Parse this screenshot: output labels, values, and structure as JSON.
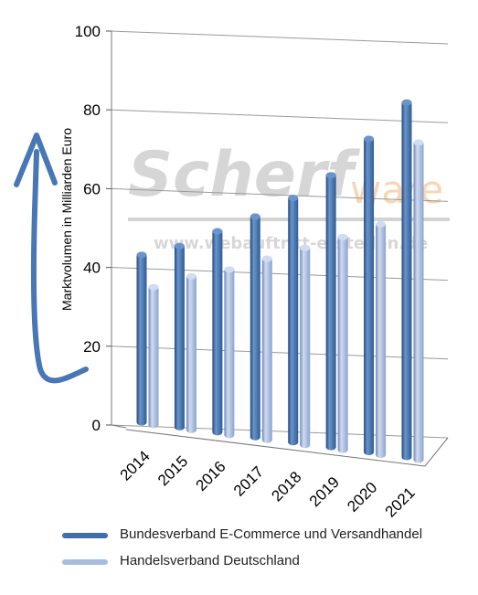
{
  "chart_data": {
    "type": "bar",
    "title": "",
    "xlabel": "",
    "ylabel": "Marktvolumen in Milliarden Euro",
    "categories": [
      "2014",
      "2015",
      "2016",
      "2017",
      "2018",
      "2019",
      "2020",
      "2021"
    ],
    "series": [
      {
        "name": "Bundesverband E-Commerce und Versandhandel",
        "values": [
          42.5,
          46,
          51,
          56,
          62,
          69,
          79.5,
          90
        ]
      },
      {
        "name": "Handelsverband Deutschland",
        "values": [
          35,
          39,
          42,
          46,
          50,
          54,
          58.5,
          80.5
        ]
      }
    ],
    "ylim": [
      0,
      100
    ],
    "yticks": [
      0,
      20,
      40,
      60,
      80,
      100
    ],
    "grid": true,
    "legend_position": "bottom",
    "style": "3d-cylinder"
  },
  "watermark": {
    "line1": "Scherf",
    "line2": "ware",
    "url": "www.webauftritt-erstellen.de"
  },
  "colors": {
    "series1": "#3f6eaa",
    "series1_light": "#6a95cc",
    "series1_dark": "#24497a",
    "series2": "#9fb6dd",
    "series2_light": "#d0dcf0",
    "series2_dark": "#6f89b8",
    "arrow": "#4777b4",
    "grid": "#9a9a9a"
  }
}
